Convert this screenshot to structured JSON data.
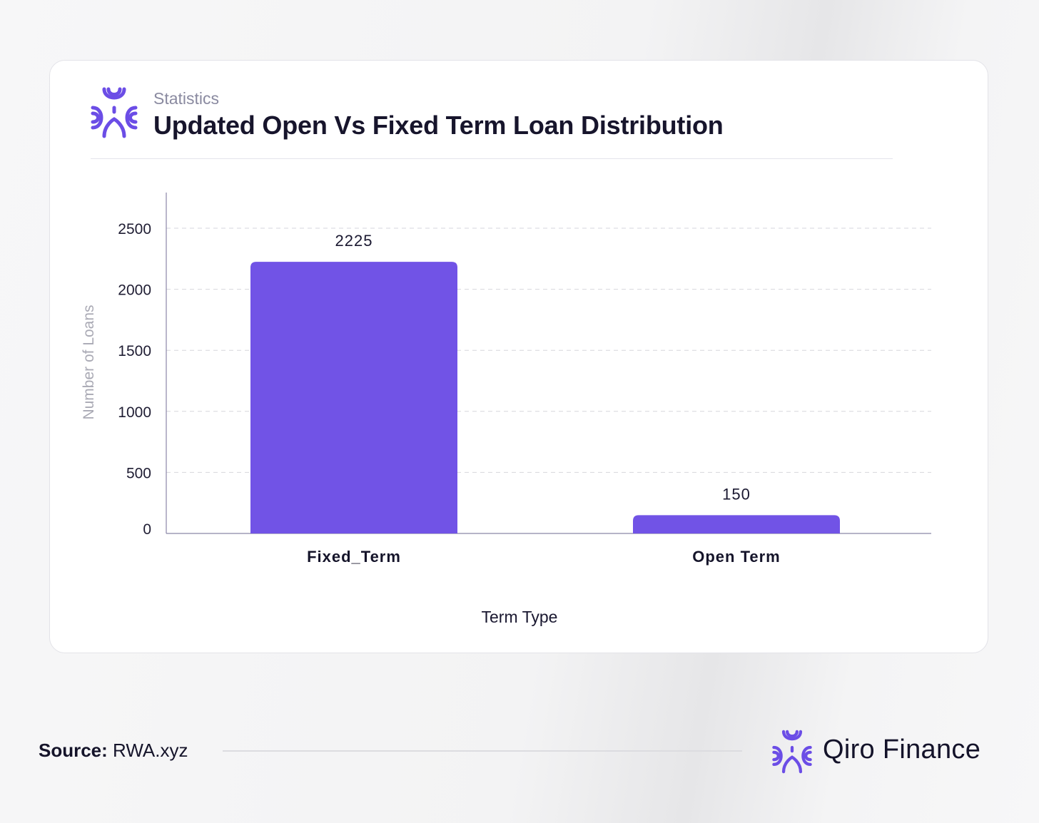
{
  "header": {
    "kicker": "Statistics",
    "title": "Updated Open Vs Fixed Term Loan Distribution"
  },
  "chart_data": {
    "type": "bar",
    "categories": [
      "Fixed_Term",
      "Open Term"
    ],
    "values": [
      2225,
      150
    ],
    "data_labels": [
      "2225",
      "150"
    ],
    "xlabel": "Term Type",
    "ylabel": "Number of Loans",
    "yticks": [
      0,
      500,
      1000,
      1500,
      2000,
      2500
    ],
    "ylim": [
      0,
      2800
    ],
    "grid": true,
    "bar_color": "#7153e6"
  },
  "footer": {
    "source_label": "Source:",
    "source_value": "RWA.xyz",
    "brand_name": "Qiro Finance"
  },
  "colors": {
    "accent": "#7153e6",
    "title": "#17152c"
  },
  "icons": {
    "logo": "qiro-logo-icon"
  }
}
